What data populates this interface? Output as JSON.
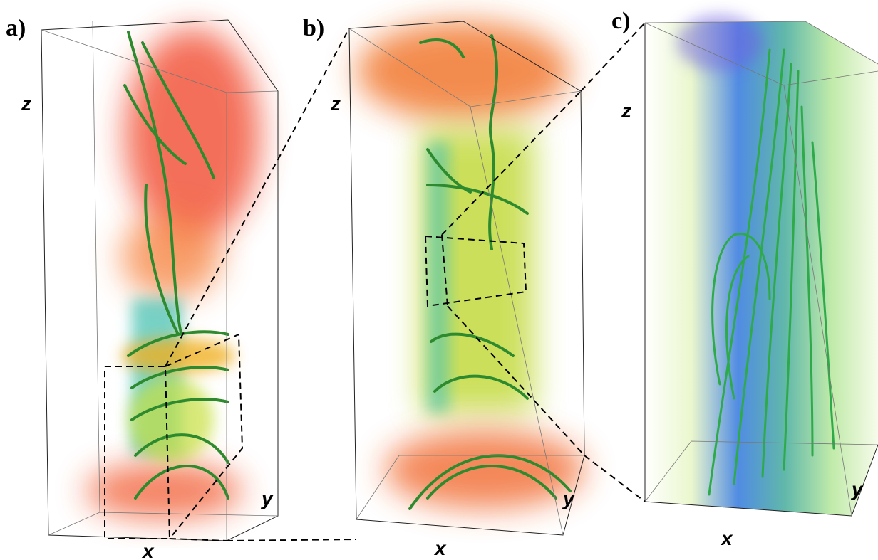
{
  "panels": [
    {
      "label": "a)",
      "z_label": "z",
      "y_label": "y",
      "x_label": "x"
    },
    {
      "label": "b)",
      "z_label": "z",
      "y_label": "y",
      "x_label": "x"
    },
    {
      "label": "c)",
      "z_label": "z",
      "y_label": "y",
      "x_label": "x"
    }
  ]
}
